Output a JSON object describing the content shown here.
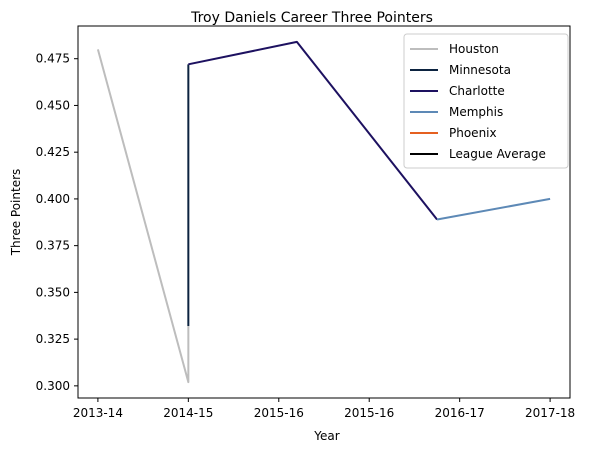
{
  "chart_data": {
    "type": "line",
    "title": "Troy Daniels Career Three Pointers",
    "xlabel": "Year",
    "ylabel": "Three Pointers",
    "x_tick_labels": [
      "2013-14",
      "2014-15",
      "2015-16",
      "2015-16",
      "2016-17",
      "2017-18"
    ],
    "y_ticks": [
      "0.300",
      "0.325",
      "0.350",
      "0.375",
      "0.400",
      "0.425",
      "0.450",
      "0.475"
    ],
    "xlim": [
      -0.22,
      5.22
    ],
    "ylim": [
      0.2935,
      0.4925
    ],
    "legend_position": "upper right",
    "grid": false,
    "series": [
      {
        "name": "Houston",
        "color": "#bdbdbd",
        "points": [
          [
            0,
            0.48
          ],
          [
            1,
            0.302
          ],
          [
            1,
            0.332
          ]
        ]
      },
      {
        "name": "Minnesota",
        "color": "#0c2340",
        "points": [
          [
            1,
            0.332
          ],
          [
            1,
            0.472
          ]
        ]
      },
      {
        "name": "Charlotte",
        "color": "#1d1160",
        "points": [
          [
            1,
            0.472
          ],
          [
            2.2,
            0.484
          ],
          [
            3.75,
            0.389
          ]
        ]
      },
      {
        "name": "Memphis",
        "color": "#5d89b6",
        "points": [
          [
            3.75,
            0.389
          ],
          [
            5,
            0.4
          ]
        ]
      },
      {
        "name": "Phoenix",
        "color": "#e56020",
        "points": []
      },
      {
        "name": "League Average",
        "color": "#000000",
        "points": []
      }
    ]
  }
}
